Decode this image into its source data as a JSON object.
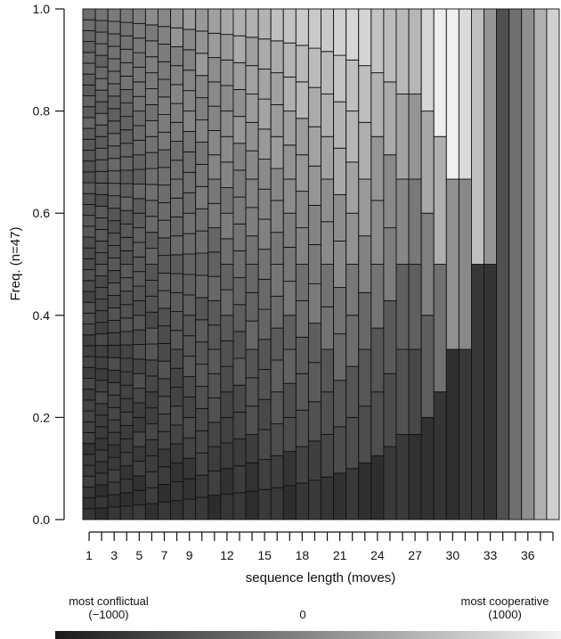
{
  "chart_data": {
    "type": "bar",
    "subtype": "stacked-proportion-mosaic",
    "title": "",
    "xlabel": "sequence length (moves)",
    "ylabel": "Freq. (n=47)",
    "ylim": [
      0,
      1
    ],
    "yticks": [
      "0.0",
      "0.2",
      "0.4",
      "0.6",
      "0.8",
      "1.0"
    ],
    "x_min": 1,
    "x_max": 38,
    "xtick_labels": [
      "1",
      "3",
      "5",
      "7",
      "9",
      "12",
      "15",
      "18",
      "21",
      "24",
      "27",
      "30",
      "33",
      "36"
    ],
    "xtick_label_values": [
      1,
      3,
      5,
      7,
      9,
      12,
      15,
      18,
      21,
      24,
      27,
      30,
      33,
      36
    ],
    "grid": false,
    "legend": {
      "placement": "bottom",
      "low_label": "most conflictual",
      "low_value": "(−1000)",
      "mid_label": "0",
      "high_label": "most cooperative",
      "high_value": "(1000)",
      "low_color": "#1a1a1a",
      "high_color": "#f2f2f2"
    },
    "segment_count_by_length": [
      47,
      44,
      41,
      38,
      35,
      32,
      29,
      27,
      25,
      23,
      21,
      20,
      19,
      18,
      17,
      16,
      15,
      14,
      13,
      12,
      11,
      10,
      9,
      8,
      7,
      6,
      6,
      5,
      4,
      3,
      3,
      2,
      2,
      1,
      1,
      1,
      1,
      1
    ],
    "cooperation_scale_by_length": [
      0.2,
      0.22,
      0.24,
      0.26,
      0.28,
      0.3,
      0.32,
      0.34,
      0.36,
      0.38,
      0.4,
      0.42,
      0.44,
      0.46,
      0.48,
      0.5,
      0.52,
      0.54,
      0.56,
      0.58,
      0.6,
      0.62,
      0.58,
      0.54,
      0.5,
      0.48,
      0.46,
      0.6,
      0.7,
      0.72,
      0.65,
      0.5,
      0.35,
      0.25,
      0.4,
      0.55,
      0.7,
      0.85
    ]
  }
}
